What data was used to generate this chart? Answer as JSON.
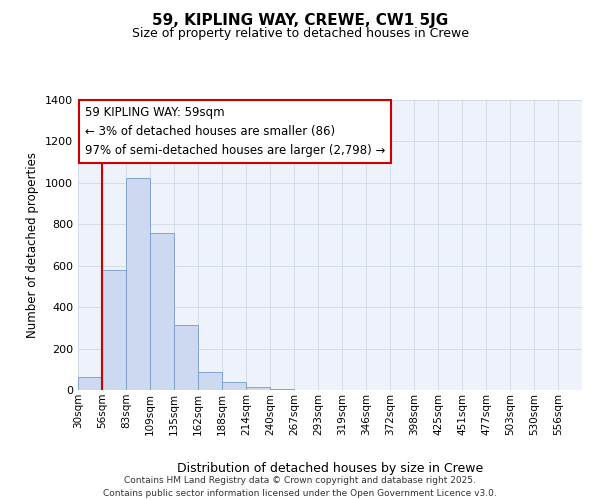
{
  "title": "59, KIPLING WAY, CREWE, CW1 5JG",
  "subtitle": "Size of property relative to detached houses in Crewe",
  "xlabel": "Distribution of detached houses by size in Crewe",
  "ylabel": "Number of detached properties",
  "bar_color": "#ccd9f0",
  "bar_edge_color": "#7799cc",
  "background_color": "#eef2fa",
  "grid_color": "#d0d8e8",
  "vline_color": "#cc0000",
  "vline_x": 1,
  "annotation_title": "59 KIPLING WAY: 59sqm",
  "annotation_line1": "← 3% of detached houses are smaller (86)",
  "annotation_line2": "97% of semi-detached houses are larger (2,798) →",
  "bins": [
    "30sqm",
    "56sqm",
    "83sqm",
    "109sqm",
    "135sqm",
    "162sqm",
    "188sqm",
    "214sqm",
    "240sqm",
    "267sqm",
    "293sqm",
    "319sqm",
    "346sqm",
    "372sqm",
    "398sqm",
    "425sqm",
    "451sqm",
    "477sqm",
    "503sqm",
    "530sqm",
    "556sqm"
  ],
  "values": [
    65,
    580,
    1025,
    760,
    315,
    85,
    38,
    15,
    5,
    0,
    0,
    0,
    0,
    0,
    0,
    0,
    0,
    0,
    0,
    0
  ],
  "ylim": [
    0,
    1400
  ],
  "yticks": [
    0,
    200,
    400,
    600,
    800,
    1000,
    1200,
    1400
  ],
  "footer_line1": "Contains HM Land Registry data © Crown copyright and database right 2025.",
  "footer_line2": "Contains public sector information licensed under the Open Government Licence v3.0."
}
